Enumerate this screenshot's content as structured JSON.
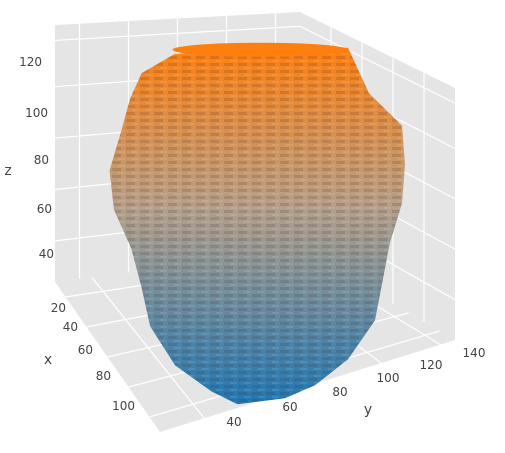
{
  "chart_data": {
    "type": "surface3d",
    "axes": {
      "x": {
        "title": "x",
        "ticks": [
          "20",
          "40",
          "60",
          "80",
          "100"
        ],
        "range": [
          20,
          110
        ]
      },
      "y": {
        "title": "y",
        "ticks": [
          "40",
          "60",
          "80",
          "100",
          "120",
          "140"
        ],
        "range": [
          30,
          145
        ]
      },
      "z": {
        "title": "z",
        "ticks": [
          "40",
          "60",
          "80",
          "100",
          "120"
        ],
        "range": [
          25,
          135
        ]
      }
    },
    "grid": true,
    "colorscale": {
      "low": "#1f77b4",
      "mid": "#b5a08a",
      "high": "#ff7f0e"
    },
    "pane_color": "#e5e5e5",
    "grid_color": "#ffffff",
    "surface_profile": [
      {
        "z": 132,
        "r_left": 0.55,
        "r_right": 0.62
      },
      {
        "z": 126,
        "r_left": 0.78,
        "r_right": 0.68
      },
      {
        "z": 118,
        "r_left": 0.86,
        "r_right": 0.76
      },
      {
        "z": 108,
        "r_left": 0.92,
        "r_right": 0.98
      },
      {
        "z": 96,
        "r_left": 1.0,
        "r_right": 1.0
      },
      {
        "z": 84,
        "r_left": 0.97,
        "r_right": 0.98
      },
      {
        "z": 72,
        "r_left": 0.85,
        "r_right": 0.9
      },
      {
        "z": 60,
        "r_left": 0.78,
        "r_right": 0.85
      },
      {
        "z": 48,
        "r_left": 0.72,
        "r_right": 0.8
      },
      {
        "z": 36,
        "r_left": 0.55,
        "r_right": 0.62
      },
      {
        "z": 28,
        "r_left": 0.3,
        "r_right": 0.4
      },
      {
        "z": 24,
        "r_left": 0.12,
        "r_right": 0.2
      }
    ]
  }
}
